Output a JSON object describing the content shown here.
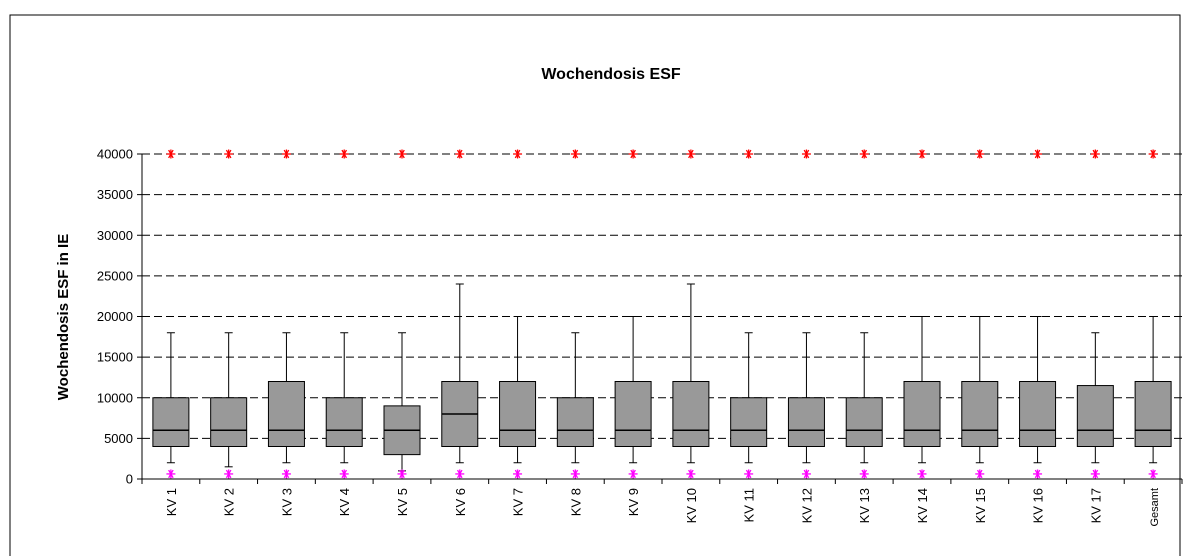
{
  "chart_data": {
    "type": "boxplot",
    "title": "Wochendosis ESF",
    "ylabel": "Wochendosis ESF in IE",
    "xlabel": "",
    "ylim": [
      0,
      40000
    ],
    "yticks": [
      0,
      5000,
      10000,
      15000,
      20000,
      25000,
      30000,
      35000,
      40000
    ],
    "grid": "horizontal dashed",
    "categories": [
      "KV 1",
      "KV 2",
      "KV 3",
      "KV 4",
      "KV 5",
      "KV 6",
      "KV 7",
      "KV 8",
      "KV 9",
      "KV 10",
      "KV 11",
      "KV 12",
      "KV 13",
      "KV 14",
      "KV 15",
      "KV 16",
      "KV 17",
      "Gesamt"
    ],
    "boxes": [
      {
        "whisker_low": 2000,
        "q1": 4000,
        "median": 6000,
        "q3": 10000,
        "whisker_high": 18000,
        "max": 40000,
        "min": 500
      },
      {
        "whisker_low": 1500,
        "q1": 4000,
        "median": 6000,
        "q3": 10000,
        "whisker_high": 18000,
        "max": 40000,
        "min": 500
      },
      {
        "whisker_low": 2000,
        "q1": 4000,
        "median": 6000,
        "q3": 12000,
        "whisker_high": 18000,
        "max": 40000,
        "min": 500
      },
      {
        "whisker_low": 2000,
        "q1": 4000,
        "median": 6000,
        "q3": 10000,
        "whisker_high": 18000,
        "max": 40000,
        "min": 500
      },
      {
        "whisker_low": 1000,
        "q1": 3000,
        "median": 6000,
        "q3": 9000,
        "whisker_high": 18000,
        "max": 40000,
        "min": 500
      },
      {
        "whisker_low": 2000,
        "q1": 4000,
        "median": 8000,
        "q3": 12000,
        "whisker_high": 24000,
        "max": 40000,
        "min": 500
      },
      {
        "whisker_low": 2000,
        "q1": 4000,
        "median": 6000,
        "q3": 12000,
        "whisker_high": 20000,
        "max": 40000,
        "min": 500
      },
      {
        "whisker_low": 2000,
        "q1": 4000,
        "median": 6000,
        "q3": 10000,
        "whisker_high": 18000,
        "max": 40000,
        "min": 500
      },
      {
        "whisker_low": 2000,
        "q1": 4000,
        "median": 6000,
        "q3": 12000,
        "whisker_high": 20000,
        "max": 40000,
        "min": 500
      },
      {
        "whisker_low": 2000,
        "q1": 4000,
        "median": 6000,
        "q3": 12000,
        "whisker_high": 24000,
        "max": 40000,
        "min": 500
      },
      {
        "whisker_low": 2000,
        "q1": 4000,
        "median": 6000,
        "q3": 10000,
        "whisker_high": 18000,
        "max": 40000,
        "min": 500
      },
      {
        "whisker_low": 2000,
        "q1": 4000,
        "median": 6000,
        "q3": 10000,
        "whisker_high": 18000,
        "max": 40000,
        "min": 500
      },
      {
        "whisker_low": 2000,
        "q1": 4000,
        "median": 6000,
        "q3": 10000,
        "whisker_high": 18000,
        "max": 40000,
        "min": 500
      },
      {
        "whisker_low": 2000,
        "q1": 4000,
        "median": 6000,
        "q3": 12000,
        "whisker_high": 20000,
        "max": 40000,
        "min": 500
      },
      {
        "whisker_low": 2000,
        "q1": 4000,
        "median": 6000,
        "q3": 12000,
        "whisker_high": 20000,
        "max": 40000,
        "min": 500
      },
      {
        "whisker_low": 2000,
        "q1": 4000,
        "median": 6000,
        "q3": 12000,
        "whisker_high": 20000,
        "max": 40000,
        "min": 500
      },
      {
        "whisker_low": 2000,
        "q1": 4000,
        "median": 6000,
        "q3": 11500,
        "whisker_high": 18000,
        "max": 40000,
        "min": 500
      },
      {
        "whisker_low": 2000,
        "q1": 4000,
        "median": 6000,
        "q3": 12000,
        "whisker_high": 20000,
        "max": 40000,
        "min": 500
      }
    ],
    "colors": {
      "box": "#999999",
      "max_marker": "#ff0000",
      "min_marker": "#ff00ff",
      "grid": "#000000"
    }
  }
}
